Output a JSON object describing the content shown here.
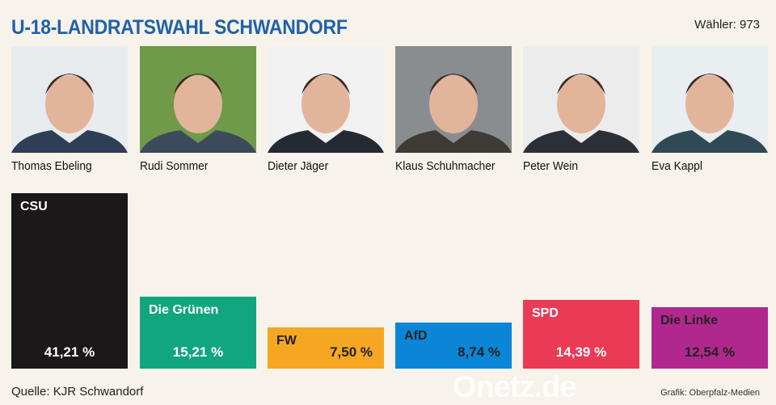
{
  "header": {
    "title": "U-18-LANDRATSWAHL SCHWANDORF",
    "voters": "Wähler: 973"
  },
  "candidates": [
    "Thomas Ebeling",
    "Rudi Sommer",
    "Dieter Jäger",
    "Klaus Schuhmacher",
    "Peter Wein",
    "Eva Kappl"
  ],
  "chart_data": {
    "type": "bar",
    "title": "U-18-Landratswahl Schwandorf",
    "categories": [
      "CSU",
      "Die Grünen",
      "FW",
      "AfD",
      "SPD",
      "Die Linke"
    ],
    "values": [
      41.21,
      15.21,
      7.5,
      8.74,
      14.39,
      12.54
    ],
    "labels": [
      "41,21 %",
      "15,21 %",
      "7,50 %",
      "8,74 %",
      "14,39 %",
      "12,54 %"
    ],
    "colors": [
      "#1a1818",
      "#12a67f",
      "#f5a623",
      "#0b86d6",
      "#ea3a55",
      "#b0288e"
    ],
    "text_colors": [
      "#ffffff",
      "#ffffff",
      "#222222",
      "#222222",
      "#ffffff",
      "#222222"
    ],
    "unit": "%",
    "ylim": [
      0,
      45
    ]
  },
  "footer": {
    "source": "Quelle: KJR Schwandorf",
    "credit": "Grafik: Oberpfalz-Medien",
    "watermark": "Onetz.de"
  }
}
